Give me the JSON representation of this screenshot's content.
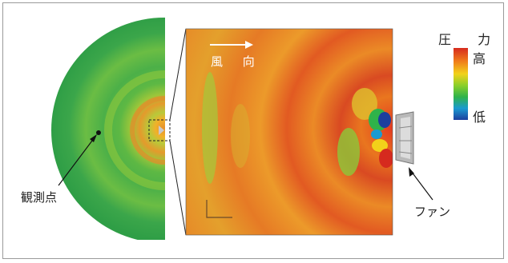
{
  "legend": {
    "title": "圧 力",
    "high_label": "高",
    "low_label": "低",
    "colors": [
      "#d62a1e",
      "#f07a1a",
      "#f2d21a",
      "#8ccf2a",
      "#2fb34a",
      "#1b9ad1",
      "#1c3f9e"
    ]
  },
  "annotations": {
    "wind_direction": "風 向",
    "observation_point": "観測点",
    "fan": "ファン"
  },
  "colors": {
    "field_base": "#e48a2a",
    "semicircle_outer": "#39a84a",
    "frame_border": "#9a9a9a"
  }
}
